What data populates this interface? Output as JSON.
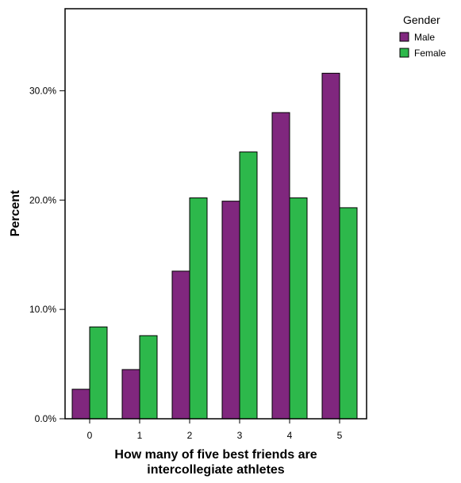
{
  "chart_data": {
    "type": "bar",
    "title": "",
    "xlabel_lines": [
      "How many of five best friends are",
      "intercollegiate athletes"
    ],
    "ylabel": "Percent",
    "categories": [
      "0",
      "1",
      "2",
      "3",
      "4",
      "5"
    ],
    "series": [
      {
        "name": "Male",
        "color": "#80277e",
        "values": [
          2.7,
          4.5,
          13.5,
          19.9,
          28.0,
          31.6
        ]
      },
      {
        "name": "Female",
        "color": "#2db84b",
        "values": [
          8.4,
          7.6,
          20.2,
          24.4,
          20.2,
          19.3
        ]
      }
    ],
    "ylim": [
      0,
      37.5
    ],
    "yticks": [
      0,
      10,
      20,
      30
    ],
    "ytick_labels": [
      "0.0%",
      "10.0%",
      "20.0%",
      "30.0%"
    ],
    "grid": false,
    "legend": {
      "title": "Gender",
      "position": "top-right",
      "entries": [
        "Male",
        "Female"
      ]
    }
  }
}
